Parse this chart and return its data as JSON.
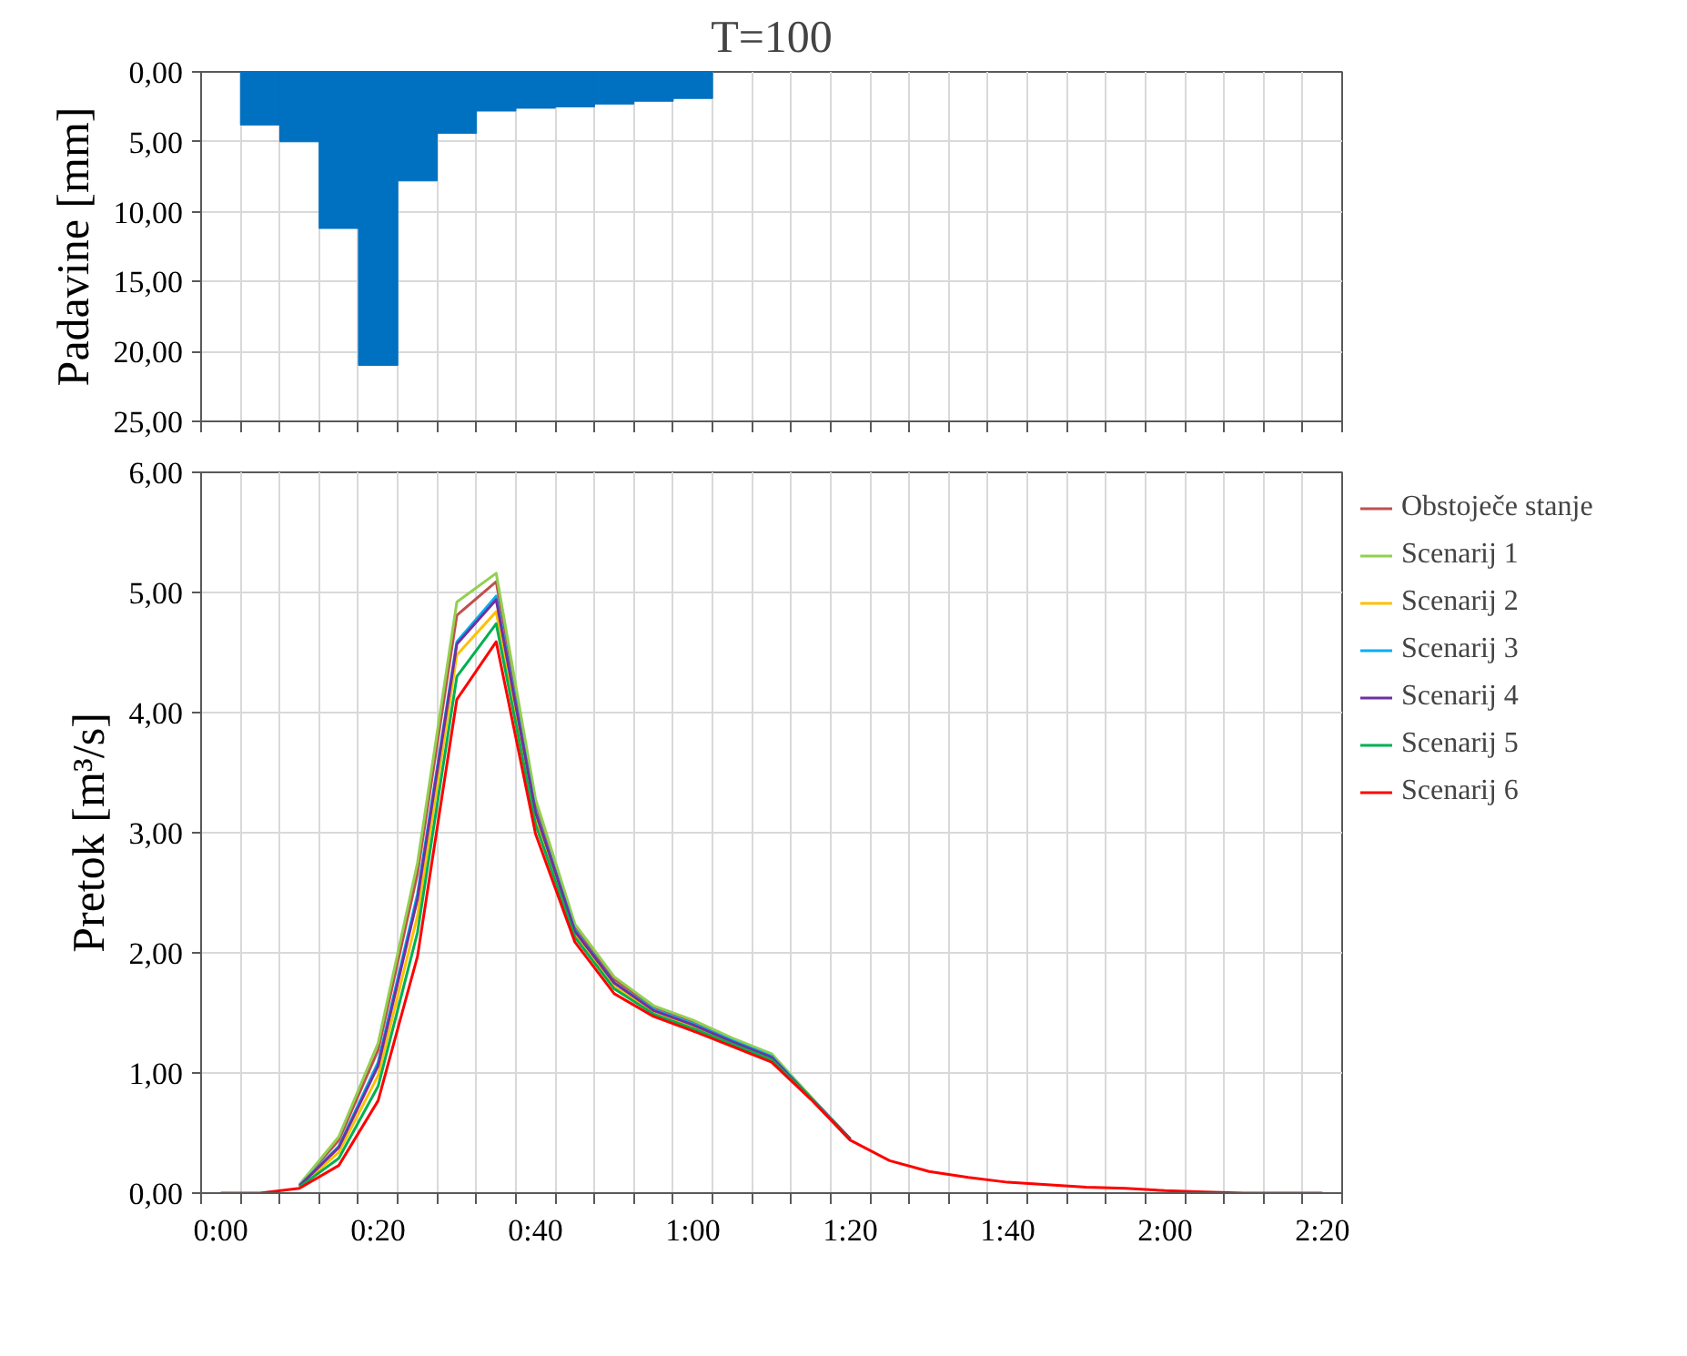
{
  "chart_data": [
    {
      "type": "bar",
      "title": "T=100",
      "ylabel": "Padavine [mm]",
      "categories": [
        null,
        null,
        null,
        null,
        null,
        null,
        null,
        null,
        null,
        null,
        null,
        null,
        null,
        null,
        null,
        null,
        null,
        null,
        null,
        null,
        null,
        null,
        null,
        null,
        null,
        null,
        null,
        null,
        null
      ],
      "values": [
        null,
        3.8,
        5.0,
        11.2,
        21.0,
        7.8,
        4.4,
        2.8,
        2.6,
        2.5,
        2.3,
        2.1,
        1.9,
        null,
        null,
        null,
        null,
        null,
        null,
        null,
        null,
        null,
        null,
        null,
        null,
        null,
        null,
        null,
        null
      ],
      "color": "#0070c0",
      "ylim": [
        25,
        0
      ],
      "yticks": [
        {
          "value": 0,
          "label": "0,00"
        },
        {
          "value": 5,
          "label": "5,00"
        },
        {
          "value": 10,
          "label": "10,00"
        },
        {
          "value": 15,
          "label": "15,00"
        },
        {
          "value": 20,
          "label": "20,00"
        },
        {
          "value": 25,
          "label": "25,00"
        }
      ],
      "grid": true
    },
    {
      "type": "line",
      "ylabel": "Pretok [m³/s]",
      "categories": [
        "0:00",
        null,
        null,
        null,
        "0:20",
        null,
        null,
        null,
        "0:40",
        null,
        null,
        null,
        "1:00",
        null,
        null,
        null,
        "1:20",
        null,
        null,
        null,
        "1:40",
        null,
        null,
        null,
        "2:00",
        null,
        null,
        null,
        "2:20"
      ],
      "series": [
        {
          "name": "Obstoječe stanje",
          "color": "#c0504d",
          "values": [
            null,
            null,
            0.07,
            0.44,
            1.19,
            2.66,
            4.81,
            5.09,
            3.25,
            2.22,
            1.78,
            1.55,
            1.43,
            1.28,
            1.15,
            0.8,
            0.45,
            null,
            null,
            null,
            null,
            null,
            null,
            null,
            null,
            null,
            null,
            null,
            null
          ]
        },
        {
          "name": "Scenarij 1",
          "color": "#92d050",
          "values": [
            null,
            null,
            0.07,
            0.47,
            1.25,
            2.75,
            4.92,
            5.16,
            3.28,
            2.24,
            1.8,
            1.56,
            1.44,
            1.29,
            1.16,
            0.8,
            0.45,
            null,
            null,
            null,
            null,
            null,
            null,
            null,
            null,
            null,
            null,
            null,
            null
          ]
        },
        {
          "name": "Scenarij 2",
          "color": "#ffc000",
          "values": [
            null,
            null,
            0.05,
            0.34,
            0.98,
            2.31,
            4.48,
            4.84,
            3.12,
            2.16,
            1.72,
            1.51,
            1.39,
            1.25,
            null,
            null,
            null,
            null,
            null,
            null,
            null,
            null,
            null,
            null,
            null,
            null,
            null,
            null,
            null
          ]
        },
        {
          "name": "Scenarij 3",
          "color": "#00b0f0",
          "values": [
            null,
            null,
            0.06,
            0.39,
            1.09,
            2.49,
            4.59,
            4.97,
            3.18,
            2.19,
            1.75,
            1.53,
            1.41,
            1.27,
            1.14,
            0.79,
            0.45,
            null,
            null,
            null,
            null,
            null,
            null,
            null,
            null,
            null,
            null,
            null,
            null
          ]
        },
        {
          "name": "Scenarij 4",
          "color": "#7030a0",
          "values": [
            null,
            null,
            0.06,
            0.38,
            1.06,
            2.45,
            4.57,
            4.94,
            3.17,
            2.18,
            1.75,
            1.52,
            1.4,
            1.26,
            1.13,
            0.79,
            0.45,
            null,
            null,
            null,
            null,
            null,
            null,
            null,
            null,
            null,
            null,
            null,
            null
          ]
        },
        {
          "name": "Scenarij 5",
          "color": "#00b050",
          "values": [
            null,
            null,
            0.05,
            0.29,
            0.89,
            2.17,
            4.3,
            4.74,
            3.07,
            2.13,
            1.7,
            1.49,
            1.37,
            1.24,
            1.11,
            0.79,
            0.44,
            null,
            null,
            null,
            null,
            null,
            null,
            null,
            null,
            null,
            null,
            null,
            null
          ]
        },
        {
          "name": "Scenarij 6",
          "color": "#ff0000",
          "values": [
            0,
            0,
            0.04,
            0.23,
            0.77,
            1.97,
            4.11,
            4.59,
            2.99,
            2.09,
            1.66,
            1.47,
            1.35,
            1.22,
            1.09,
            0.78,
            0.44,
            0.27,
            0.18,
            0.13,
            0.09,
            0.07,
            0.05,
            0.04,
            0.02,
            0.01,
            0,
            0,
            0
          ]
        }
      ],
      "ylim": [
        0,
        6
      ],
      "yticks": [
        {
          "value": 0,
          "label": "0,00"
        },
        {
          "value": 1,
          "label": "1,00"
        },
        {
          "value": 2,
          "label": "2,00"
        },
        {
          "value": 3,
          "label": "3,00"
        },
        {
          "value": 4,
          "label": "4,00"
        },
        {
          "value": 5,
          "label": "5,00"
        },
        {
          "value": 6,
          "label": "6,00"
        }
      ],
      "grid": true,
      "legend": "right"
    }
  ]
}
